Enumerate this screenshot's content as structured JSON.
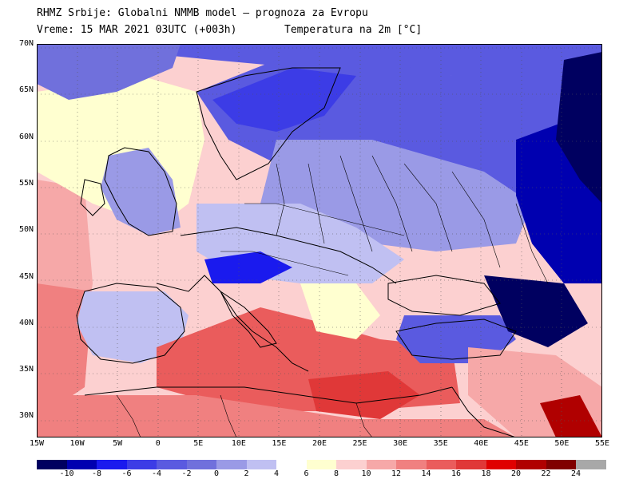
{
  "header": {
    "line1": "RHMZ Srbije: Globalni NMMB model — prognoza za Evropu",
    "line2a": "Vreme: 15 MAR 2021 03UTC (+003h)",
    "line2b": "Temperatura na 2m [°C]"
  },
  "axes": {
    "lat_labels": [
      "70N",
      "65N",
      "60N",
      "55N",
      "50N",
      "45N",
      "40N",
      "35N",
      "30N"
    ],
    "lon_labels": [
      "15W",
      "10W",
      "5W",
      "0",
      "5E",
      "10E",
      "15E",
      "20E",
      "25E",
      "30E",
      "35E",
      "40E",
      "45E",
      "50E",
      "55E"
    ]
  },
  "colorbar": {
    "labels": [
      "-10",
      "-8",
      "-6",
      "-4",
      "-2",
      "0",
      "2",
      "4",
      "6",
      "8",
      "10",
      "12",
      "14",
      "16",
      "18",
      "20",
      "22",
      "24"
    ],
    "colors": [
      "#000060",
      "#0000b0",
      "#1a1aee",
      "#3c3ce6",
      "#5a5ae0",
      "#7070dc",
      "#9a9ae6",
      "#c0c0f2",
      "#ffffff",
      "#ffffd0",
      "#fcd0d0",
      "#f6a8a8",
      "#f08080",
      "#ea5c5c",
      "#e03838",
      "#e00000",
      "#b00000",
      "#800000",
      "#a8a8a8"
    ]
  }
}
